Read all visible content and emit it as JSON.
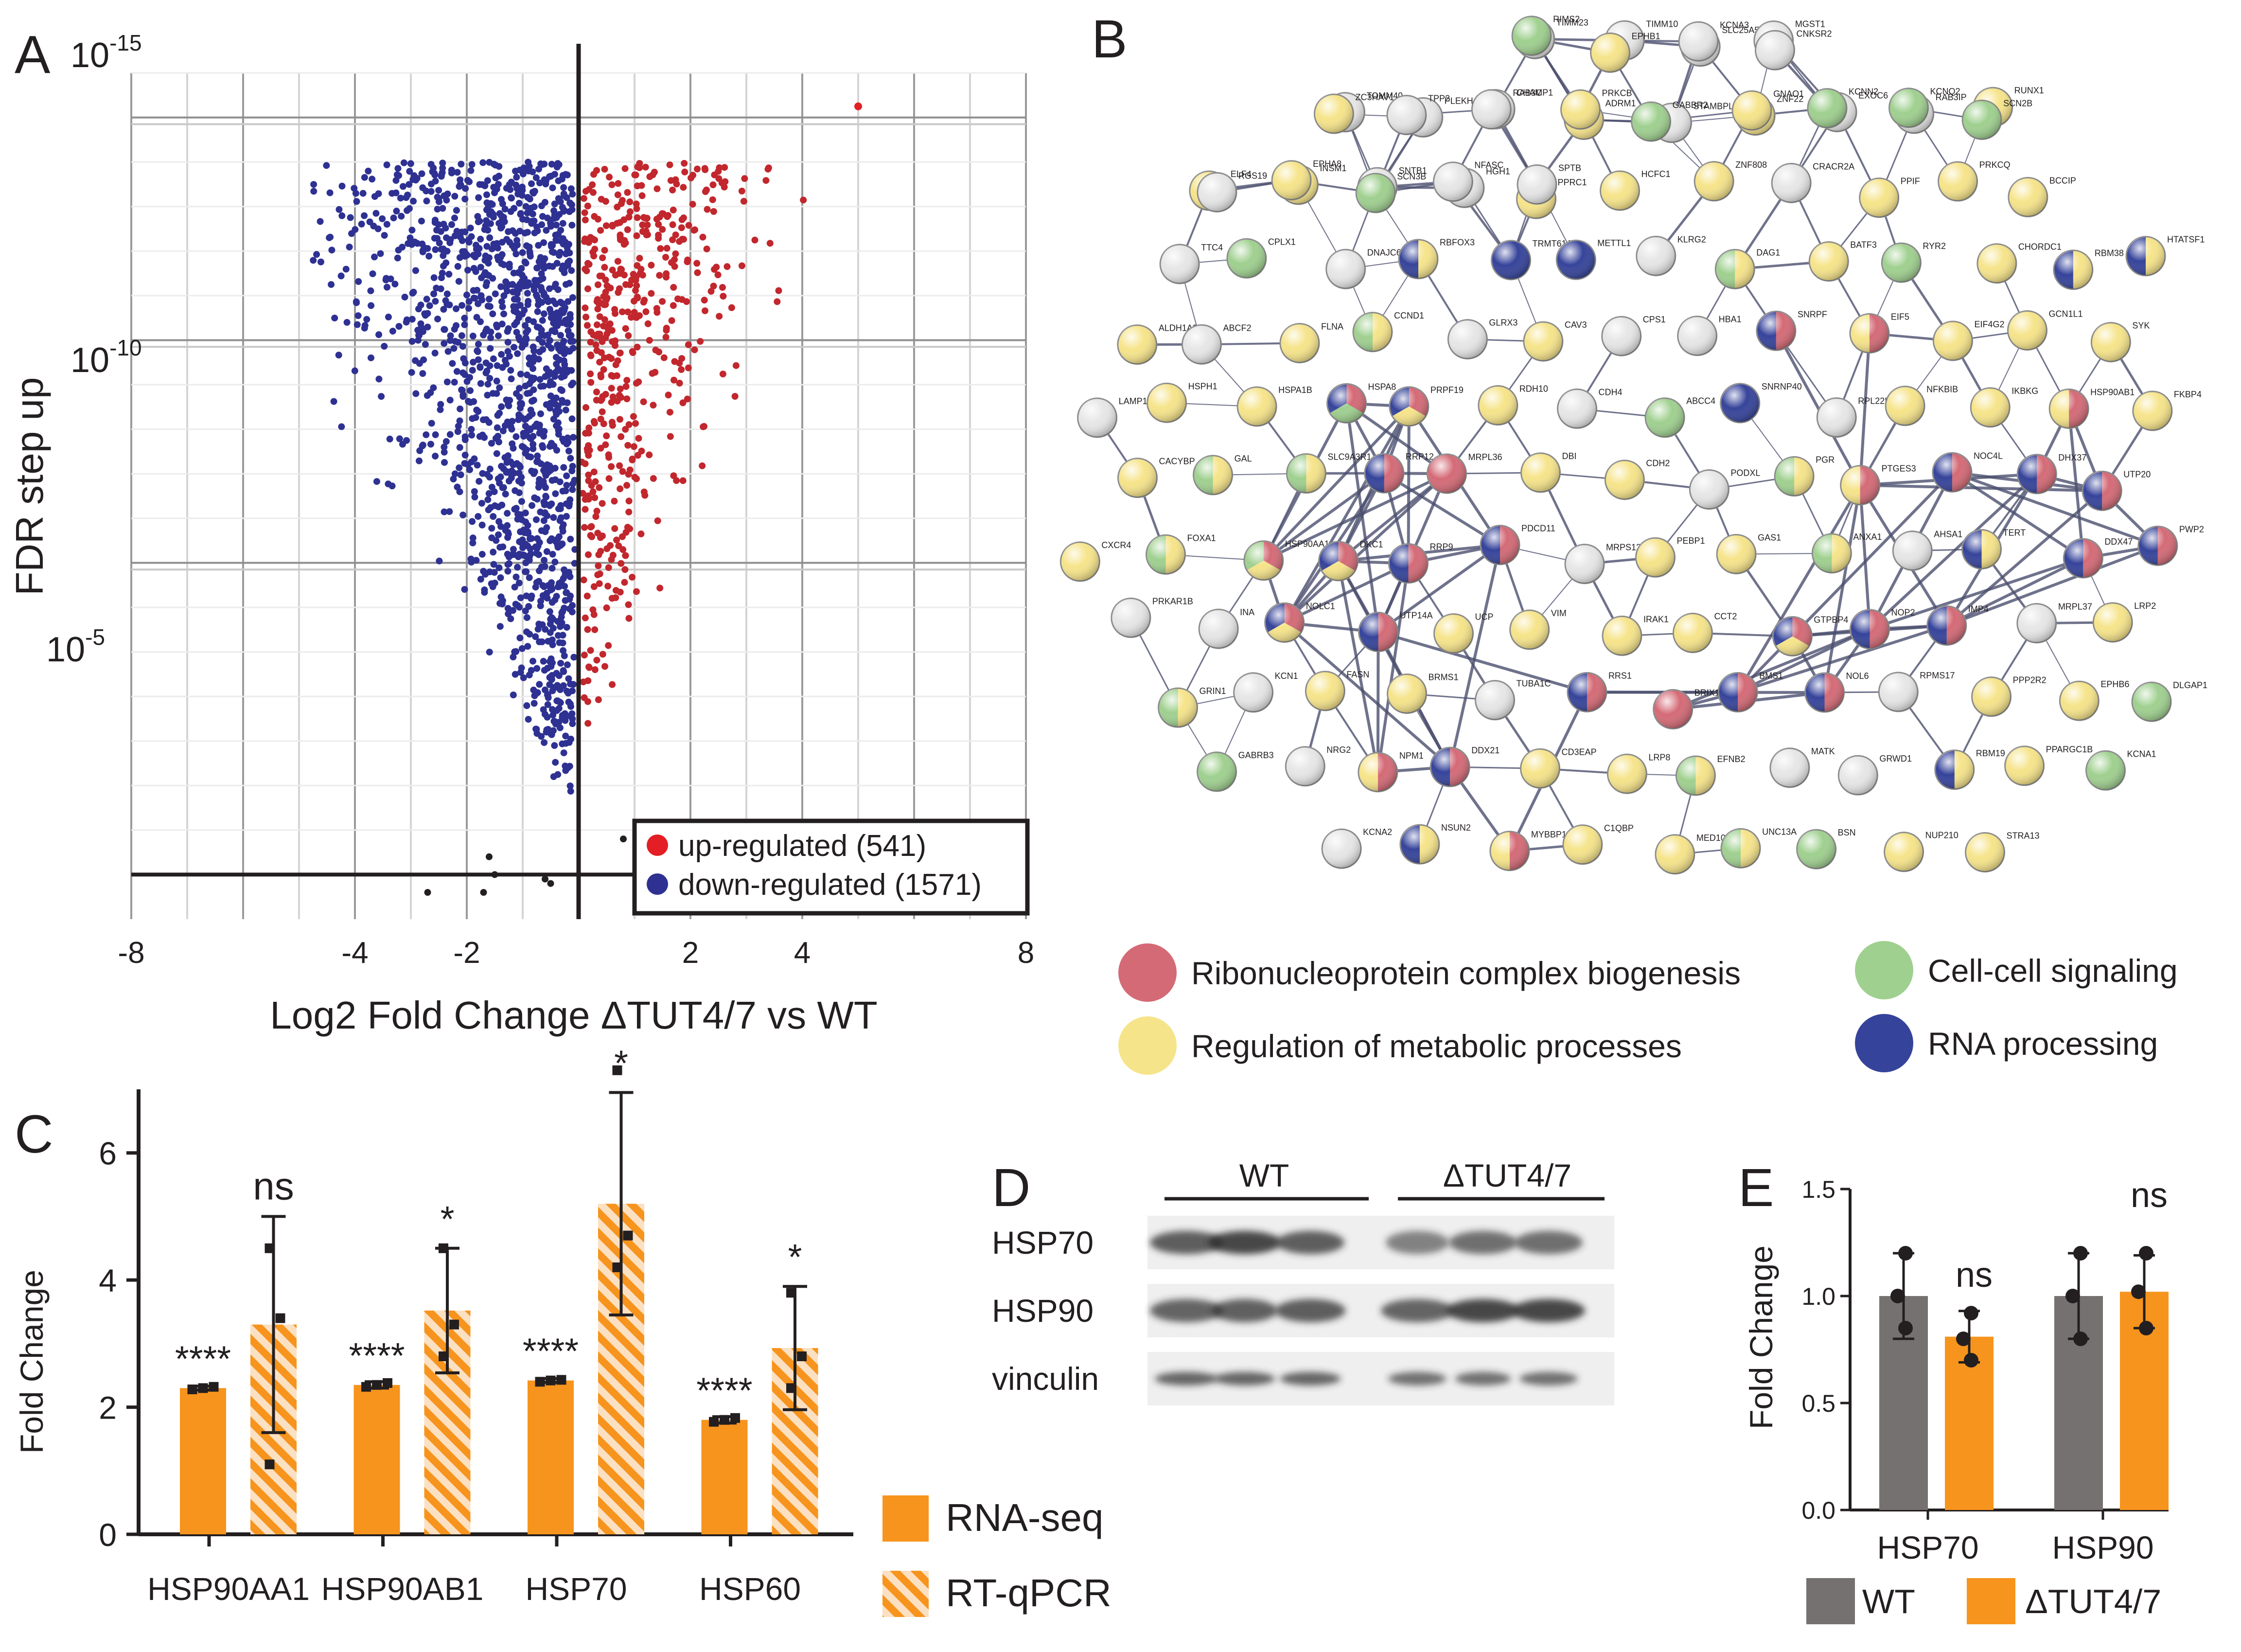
{
  "panels": {
    "a": "A",
    "b": "B",
    "c": "C",
    "d": "D",
    "e": "E"
  },
  "colors": {
    "up": "#c1272d",
    "down": "#2e3192",
    "ribo": "#d46a76",
    "meta": "#f6e48a",
    "cell": "#9fd08f",
    "rna": "#35439a",
    "orange": "#f7941d",
    "gray": "#767171"
  },
  "panel_a": {
    "xlabel": "Log2 Fold Change ΔTUT4/7 vs WT",
    "ylabel": "FDR step up",
    "y_tick_labels": [
      {
        "base": "10",
        "exp": "-15",
        "value": 15
      },
      {
        "base": "10",
        "exp": "-10",
        "value": 10
      },
      {
        "base": "10",
        "exp": "-5",
        "value": 5
      }
    ],
    "legend": {
      "up": "up-regulated (541)",
      "down": "down-regulated (1571)"
    }
  },
  "panel_b": {
    "legend": {
      "ribo": "Ribonucleoprotein complex biogenesis",
      "meta": "Regulation of metabolic processes",
      "cell": "Cell-cell signaling",
      "rna": "RNA processing"
    },
    "nodes": [
      {
        "label": "TIMM23",
        "cats": []
      },
      {
        "label": "TIMM10",
        "cats": []
      },
      {
        "label": "SLC25A5",
        "cats": []
      },
      {
        "label": "MGST1",
        "cats": []
      },
      {
        "label": "TOMM40",
        "cats": []
      },
      {
        "label": "PLEKHA7",
        "cats": []
      },
      {
        "label": "CHAMP1",
        "cats": []
      },
      {
        "label": "ADRM1",
        "cats": [
          "meta"
        ]
      },
      {
        "label": "STAMBPL1",
        "cats": []
      },
      {
        "label": "ZNF22",
        "cats": [
          "meta"
        ]
      },
      {
        "label": "EXOC6",
        "cats": []
      },
      {
        "label": "RAB3IP",
        "cats": []
      },
      {
        "label": "RUNX1",
        "cats": [
          "meta"
        ]
      },
      {
        "label": "ELF4",
        "cats": [
          "meta"
        ]
      },
      {
        "label": "INSM1",
        "cats": [
          "meta"
        ]
      },
      {
        "label": "SNTB1",
        "cats": []
      },
      {
        "label": "HGH1",
        "cats": []
      },
      {
        "label": "PPRC1",
        "cats": [
          "meta"
        ]
      },
      {
        "label": "HCFC1",
        "cats": [
          "meta"
        ]
      },
      {
        "label": "ZNF808",
        "cats": [
          "meta"
        ]
      },
      {
        "label": "CRACR2A",
        "cats": []
      },
      {
        "label": "PPIF",
        "cats": [
          "meta"
        ]
      },
      {
        "label": "PRKCQ",
        "cats": [
          "meta"
        ]
      },
      {
        "label": "BCCIP",
        "cats": [
          "meta"
        ]
      },
      {
        "label": "TTC4",
        "cats": []
      },
      {
        "label": "CPLX1",
        "cats": [
          "cell"
        ]
      },
      {
        "label": "DNAJC6",
        "cats": []
      },
      {
        "label": "RBFOX3",
        "cats": [
          "meta",
          "rna"
        ]
      },
      {
        "label": "TRMT61A",
        "cats": [
          "rna"
        ]
      },
      {
        "label": "METTL1",
        "cats": [
          "rna"
        ]
      },
      {
        "label": "KLRG2",
        "cats": []
      },
      {
        "label": "DAG1",
        "cats": [
          "meta",
          "cell"
        ]
      },
      {
        "label": "BATF3",
        "cats": [
          "meta"
        ]
      },
      {
        "label": "RYR2",
        "cats": [
          "cell"
        ]
      },
      {
        "label": "CHORDC1",
        "cats": [
          "meta"
        ]
      },
      {
        "label": "RBM38",
        "cats": [
          "meta",
          "rna"
        ]
      },
      {
        "label": "HTATSF1",
        "cats": [
          "meta",
          "rna"
        ]
      },
      {
        "label": "ALDH1A3",
        "cats": [
          "meta"
        ]
      },
      {
        "label": "ABCF2",
        "cats": []
      },
      {
        "label": "FLNA",
        "cats": [
          "meta"
        ]
      },
      {
        "label": "CCND1",
        "cats": [
          "meta",
          "cell"
        ]
      },
      {
        "label": "GLRX3",
        "cats": []
      },
      {
        "label": "CAV3",
        "cats": [
          "meta"
        ]
      },
      {
        "label": "CPS1",
        "cats": []
      },
      {
        "label": "HBA1",
        "cats": []
      },
      {
        "label": "SNRPF",
        "cats": [
          "ribo",
          "rna"
        ]
      },
      {
        "label": "EIF5",
        "cats": [
          "ribo",
          "meta"
        ]
      },
      {
        "label": "EIF4G2",
        "cats": [
          "meta"
        ]
      },
      {
        "label": "GCN1L1",
        "cats": [
          "meta"
        ]
      },
      {
        "label": "SYK",
        "cats": [
          "meta"
        ]
      },
      {
        "label": "LAMP1",
        "cats": []
      },
      {
        "label": "HSPH1",
        "cats": [
          "meta"
        ]
      },
      {
        "label": "HSPA1B",
        "cats": [
          "meta"
        ]
      },
      {
        "label": "HSPA8",
        "cats": [
          "ribo",
          "cell",
          "rna"
        ]
      },
      {
        "label": "PRPF19",
        "cats": [
          "ribo",
          "meta",
          "rna"
        ]
      },
      {
        "label": "RDH10",
        "cats": [
          "meta"
        ]
      },
      {
        "label": "CDH4",
        "cats": []
      },
      {
        "label": "ABCC4",
        "cats": [
          "cell"
        ]
      },
      {
        "label": "SNRNP40",
        "cats": [
          "rna"
        ]
      },
      {
        "label": "RPL22L1",
        "cats": []
      },
      {
        "label": "NFKBIB",
        "cats": [
          "meta"
        ]
      },
      {
        "label": "IKBKG",
        "cats": [
          "meta"
        ]
      },
      {
        "label": "HSP90AB1",
        "cats": [
          "ribo",
          "meta"
        ]
      },
      {
        "label": "FKBP4",
        "cats": [
          "meta"
        ]
      },
      {
        "label": "CACYBP",
        "cats": [
          "meta"
        ]
      },
      {
        "label": "GAL",
        "cats": [
          "meta",
          "cell"
        ]
      },
      {
        "label": "SLC9A3R1",
        "cats": [
          "meta",
          "cell"
        ]
      },
      {
        "label": "RRP12",
        "cats": [
          "ribo",
          "rna"
        ]
      },
      {
        "label": "MRPL36",
        "cats": [
          "ribo"
        ]
      },
      {
        "label": "DBI",
        "cats": [
          "meta"
        ]
      },
      {
        "label": "CDH2",
        "cats": [
          "meta"
        ]
      },
      {
        "label": "PODXL",
        "cats": []
      },
      {
        "label": "PGR",
        "cats": [
          "meta",
          "cell"
        ]
      },
      {
        "label": "PTGES3",
        "cats": [
          "ribo",
          "meta"
        ]
      },
      {
        "label": "NOC4L",
        "cats": [
          "ribo",
          "rna"
        ]
      },
      {
        "label": "DHX37",
        "cats": [
          "ribo",
          "rna"
        ]
      },
      {
        "label": "UTP20",
        "cats": [
          "ribo",
          "rna"
        ]
      },
      {
        "label": "CXCR4",
        "cats": [
          "meta"
        ]
      },
      {
        "label": "FOXA1",
        "cats": [
          "meta",
          "cell"
        ]
      },
      {
        "label": "HSP90AA1",
        "cats": [
          "ribo",
          "meta",
          "cell"
        ]
      },
      {
        "label": "DKC1",
        "cats": [
          "ribo",
          "meta",
          "rna"
        ]
      },
      {
        "label": "RRP9",
        "cats": [
          "ribo",
          "rna"
        ]
      },
      {
        "label": "PDCD11",
        "cats": [
          "ribo",
          "rna"
        ]
      },
      {
        "label": "MRPS12",
        "cats": []
      },
      {
        "label": "PEBP1",
        "cats": [
          "meta"
        ]
      },
      {
        "label": "GAS1",
        "cats": [
          "meta"
        ]
      },
      {
        "label": "ANXA1",
        "cats": [
          "meta",
          "cell"
        ]
      },
      {
        "label": "AHSA1",
        "cats": []
      },
      {
        "label": "TERT",
        "cats": [
          "meta",
          "rna"
        ]
      },
      {
        "label": "DDX47",
        "cats": [
          "ribo",
          "rna"
        ]
      },
      {
        "label": "PWP2",
        "cats": [
          "ribo",
          "rna"
        ]
      },
      {
        "label": "PRKAR1B",
        "cats": []
      },
      {
        "label": "INA",
        "cats": []
      },
      {
        "label": "NOLC1",
        "cats": [
          "ribo",
          "meta",
          "rna"
        ]
      },
      {
        "label": "UTP14A",
        "cats": [
          "ribo",
          "rna"
        ]
      },
      {
        "label": "UCP",
        "cats": [
          "meta"
        ]
      },
      {
        "label": "VIM",
        "cats": [
          "meta"
        ]
      },
      {
        "label": "IRAK1",
        "cats": [
          "meta"
        ]
      },
      {
        "label": "CCT2",
        "cats": [
          "meta"
        ]
      },
      {
        "label": "GTPBP4",
        "cats": [
          "ribo",
          "meta",
          "rna"
        ]
      },
      {
        "label": "NOP2",
        "cats": [
          "ribo",
          "rna"
        ]
      },
      {
        "label": "IMP4",
        "cats": [
          "ribo",
          "rna"
        ]
      },
      {
        "label": "MRPL37",
        "cats": []
      },
      {
        "label": "LRP2",
        "cats": [
          "meta"
        ]
      },
      {
        "label": "GRIN1",
        "cats": [
          "meta",
          "cell"
        ]
      },
      {
        "label": "KCN1",
        "cats": []
      },
      {
        "label": "FASN",
        "cats": [
          "meta"
        ]
      },
      {
        "label": "BRMS1",
        "cats": [
          "meta"
        ]
      },
      {
        "label": "TUBA1C",
        "cats": []
      },
      {
        "label": "RRS1",
        "cats": [
          "ribo",
          "rna"
        ]
      },
      {
        "label": "BRIX1",
        "cats": [
          "ribo"
        ]
      },
      {
        "label": "BMS1",
        "cats": [
          "ribo",
          "rna"
        ]
      },
      {
        "label": "NOL6",
        "cats": [
          "ribo",
          "rna"
        ]
      },
      {
        "label": "RPMS17",
        "cats": []
      },
      {
        "label": "PPP2R2",
        "cats": [
          "meta"
        ]
      },
      {
        "label": "EPHB6",
        "cats": [
          "meta"
        ]
      },
      {
        "label": "DLGAP1",
        "cats": [
          "cell"
        ]
      },
      {
        "label": "GABRB3",
        "cats": [
          "cell"
        ]
      },
      {
        "label": "NRG2",
        "cats": []
      },
      {
        "label": "NPM1",
        "cats": [
          "ribo",
          "meta"
        ]
      },
      {
        "label": "DDX21",
        "cats": [
          "ribo",
          "rna"
        ]
      },
      {
        "label": "CD3EAP",
        "cats": [
          "meta"
        ]
      },
      {
        "label": "LRP8",
        "cats": [
          "meta"
        ]
      },
      {
        "label": "EFNB2",
        "cats": [
          "meta",
          "cell"
        ]
      },
      {
        "label": "MATK",
        "cats": []
      },
      {
        "label": "GRWD1",
        "cats": []
      },
      {
        "label": "RBM19",
        "cats": [
          "meta",
          "rna"
        ]
      },
      {
        "label": "PPARGC1B",
        "cats": [
          "meta"
        ]
      },
      {
        "label": "KCNA1",
        "cats": [
          "cell"
        ]
      },
      {
        "label": "KCNA2",
        "cats": []
      },
      {
        "label": "NSUN2",
        "cats": [
          "meta",
          "rna"
        ]
      },
      {
        "label": "MYBBP1A",
        "cats": [
          "ribo",
          "meta"
        ]
      },
      {
        "label": "C1QBP",
        "cats": [
          "meta"
        ]
      },
      {
        "label": "MED10",
        "cats": [
          "meta"
        ]
      },
      {
        "label": "UNC13A",
        "cats": [
          "meta",
          "cell"
        ]
      },
      {
        "label": "BSN",
        "cats": [
          "cell"
        ]
      },
      {
        "label": "NUP210",
        "cats": [
          "meta"
        ]
      },
      {
        "label": "STRA13",
        "cats": [
          "meta"
        ]
      },
      {
        "label": "RIMS2",
        "cats": [
          "cell"
        ]
      },
      {
        "label": "EPHB1",
        "cats": [
          "meta"
        ]
      },
      {
        "label": "KCNA3",
        "cats": []
      },
      {
        "label": "CNKSR2",
        "cats": []
      },
      {
        "label": "ZC3HAV1",
        "cats": [
          "meta"
        ]
      },
      {
        "label": "TPP2",
        "cats": []
      },
      {
        "label": "RAB3C",
        "cats": []
      },
      {
        "label": "PRKCB",
        "cats": [
          "meta"
        ]
      },
      {
        "label": "GABBR2",
        "cats": [
          "cell"
        ]
      },
      {
        "label": "GNAO1",
        "cats": [
          "meta"
        ]
      },
      {
        "label": "KCNN2",
        "cats": [
          "cell"
        ]
      },
      {
        "label": "KCNQ2",
        "cats": [
          "cell"
        ]
      },
      {
        "label": "SCN2B",
        "cats": [
          "cell"
        ]
      },
      {
        "label": "RGS19",
        "cats": []
      },
      {
        "label": "EPHA8",
        "cats": [
          "meta"
        ]
      },
      {
        "label": "SCN3B",
        "cats": [
          "cell"
        ]
      },
      {
        "label": "NFASC",
        "cats": []
      },
      {
        "label": "SPTB",
        "cats": []
      }
    ]
  },
  "panel_c": {
    "ylabel": "Fold Change",
    "legend": {
      "rnaseq": "RNA-seq",
      "qpcr": "RT-qPCR"
    }
  },
  "panel_d": {
    "groups": [
      "WT",
      "ΔTUT4/7"
    ],
    "rows": [
      "HSP70",
      "HSP90",
      "vinculin"
    ]
  },
  "panel_e": {
    "ylabel": "Fold Change",
    "legend": {
      "wt": "WT",
      "ko": "ΔTUT4/7"
    }
  },
  "chart_data": [
    {
      "id": "volcano",
      "type": "scatter",
      "title": "",
      "xlabel": "Log2 Fold Change ΔTUT4/7 vs WT",
      "ylabel": "FDR step up",
      "xlim": [
        -8,
        8
      ],
      "ylim_neglog10": [
        -3,
        16
      ],
      "x_ticks": [
        -8,
        -4,
        -2,
        2,
        4,
        8
      ],
      "x_tick_labels": [
        "-8",
        "-4",
        "-2",
        "2",
        "4",
        "8"
      ],
      "series": [
        {
          "name": "up-regulated (541)",
          "color": "#c1272d",
          "count": 541
        },
        {
          "name": "down-regulated (1571)",
          "color": "#2e3192",
          "count": 1571
        },
        {
          "name": "not significant",
          "color": "#231f20",
          "points": [
            [
              -2.7,
              -2.4
            ],
            [
              -1.7,
              -2.4
            ],
            [
              -0.6,
              -2.1
            ],
            [
              -0.5,
              -2.2
            ],
            [
              -1.6,
              -1.6
            ],
            [
              -1.5,
              -2.0
            ],
            [
              0.8,
              -1.2
            ]
          ]
        }
      ]
    },
    {
      "id": "foldchange_c",
      "type": "bar",
      "categories": [
        "HSP90AA1",
        "HSP90AB1",
        "HSP70",
        "HSP60"
      ],
      "ylabel": "Fold Change",
      "ylim": [
        0,
        7
      ],
      "y_ticks": [
        0,
        2,
        4,
        6
      ],
      "y_tick_labels": [
        "0",
        "2",
        "4",
        "6"
      ],
      "series": [
        {
          "name": "RNA-seq",
          "values": [
            2.3,
            2.35,
            2.42,
            1.8
          ],
          "errors": [
            0.03,
            0.05,
            0.03,
            0.05
          ],
          "points": [
            [
              2.28,
              2.3,
              2.32
            ],
            [
              2.32,
              2.35,
              2.38
            ],
            [
              2.4,
              2.42,
              2.43
            ],
            [
              1.77,
              1.8,
              1.83
            ]
          ],
          "significance": [
            "****",
            "****",
            "****",
            "****"
          ]
        },
        {
          "name": "RT-qPCR",
          "values": [
            3.3,
            3.52,
            5.2,
            2.93
          ],
          "errors": [
            1.7,
            0.98,
            1.75,
            0.97
          ],
          "points": [
            [
              1.1,
              3.4,
              4.5
            ],
            [
              2.8,
              3.3,
              4.5
            ],
            [
              4.2,
              4.7,
              7.3
            ],
            [
              2.3,
              2.8,
              3.8
            ]
          ],
          "significance": [
            "ns",
            "*",
            "*",
            "*"
          ]
        }
      ]
    },
    {
      "id": "foldchange_e",
      "type": "bar",
      "categories": [
        "HSP70",
        "HSP90"
      ],
      "ylabel": "Fold Change",
      "ylim": [
        0,
        1.5
      ],
      "y_ticks": [
        0,
        0.5,
        1.0,
        1.5
      ],
      "y_tick_labels": [
        "0.0",
        "0.5",
        "1.0",
        "1.5"
      ],
      "series": [
        {
          "name": "WT",
          "values": [
            1.0,
            1.0
          ],
          "errors": [
            0.2,
            0.2
          ],
          "points": [
            [
              0.85,
              1.0,
              1.2
            ],
            [
              0.8,
              1.0,
              1.2
            ]
          ],
          "significance": [
            "",
            ""
          ]
        },
        {
          "name": "ΔTUT4/7",
          "values": [
            0.81,
            1.02
          ],
          "errors": [
            0.12,
            0.17
          ],
          "points": [
            [
              0.7,
              0.8,
              0.92
            ],
            [
              0.85,
              1.02,
              1.2
            ]
          ],
          "significance": [
            "ns",
            "ns"
          ]
        }
      ]
    }
  ]
}
